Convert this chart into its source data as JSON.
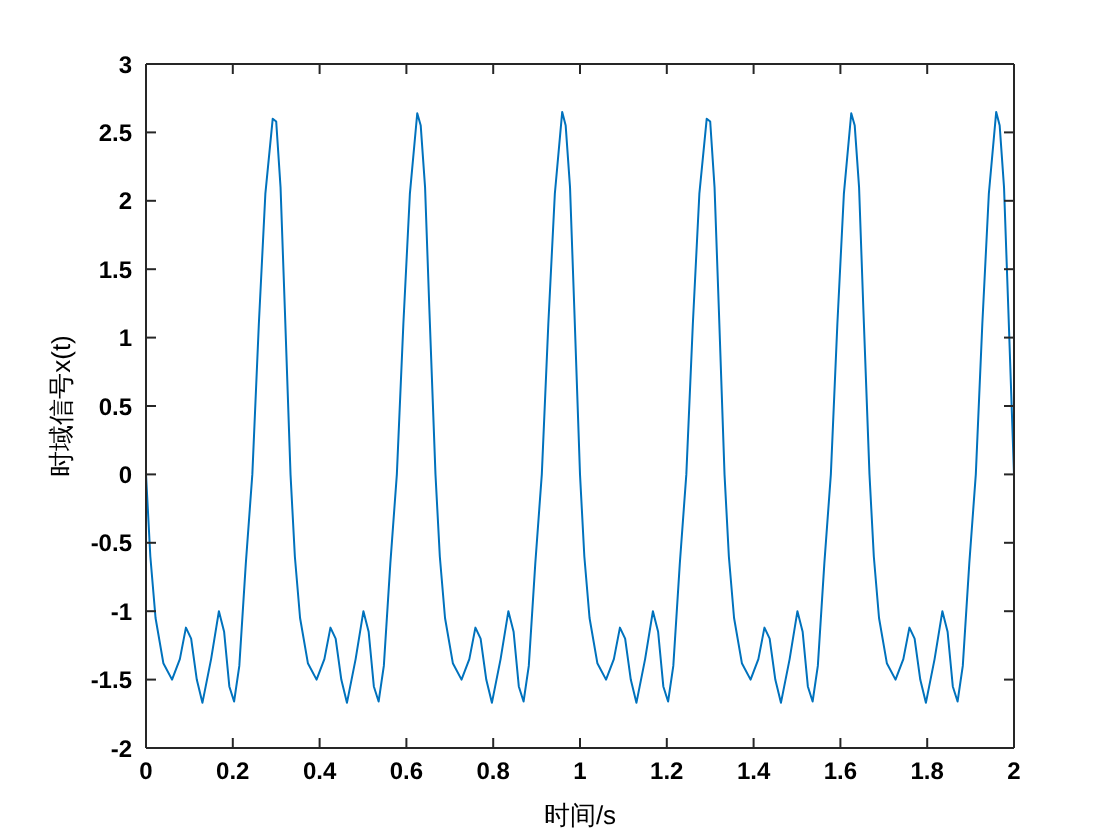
{
  "chart_data": {
    "type": "line",
    "xlabel": "时间/s",
    "ylabel": "时域信号x(t)",
    "x": [
      0,
      0.01,
      0.022,
      0.04,
      0.06,
      0.078,
      0.092,
      0.104,
      0.117,
      0.13,
      0.15,
      0.168,
      0.18,
      0.192,
      0.203,
      0.215,
      0.23,
      0.245,
      0.26,
      0.275,
      0.292,
      0.3,
      0.31,
      0.32,
      0.333,
      0.343,
      0.355,
      0.373,
      0.393,
      0.411,
      0.425,
      0.437,
      0.45,
      0.463,
      0.483,
      0.501,
      0.513,
      0.525,
      0.536,
      0.548,
      0.563,
      0.578,
      0.593,
      0.608,
      0.625,
      0.633,
      0.643,
      0.653,
      0.667,
      0.677,
      0.689,
      0.707,
      0.727,
      0.745,
      0.759,
      0.771,
      0.784,
      0.797,
      0.817,
      0.835,
      0.847,
      0.859,
      0.87,
      0.882,
      0.897,
      0.912,
      0.927,
      0.942,
      0.959,
      0.967,
      0.977,
      0.987,
      1.0,
      1.01,
      1.022,
      1.04,
      1.06,
      1.078,
      1.092,
      1.104,
      1.117,
      1.13,
      1.15,
      1.168,
      1.18,
      1.192,
      1.203,
      1.215,
      1.23,
      1.245,
      1.26,
      1.275,
      1.292,
      1.3,
      1.31,
      1.32,
      1.333,
      1.343,
      1.355,
      1.373,
      1.393,
      1.411,
      1.425,
      1.437,
      1.45,
      1.463,
      1.483,
      1.501,
      1.513,
      1.525,
      1.536,
      1.548,
      1.563,
      1.578,
      1.593,
      1.608,
      1.625,
      1.633,
      1.643,
      1.653,
      1.667,
      1.677,
      1.689,
      1.707,
      1.727,
      1.745,
      1.759,
      1.771,
      1.784,
      1.797,
      1.817,
      1.835,
      1.847,
      1.859,
      1.87,
      1.882,
      1.897,
      1.912,
      1.927,
      1.942,
      1.959,
      1.967,
      1.977,
      1.987,
      2.0
    ],
    "series": [
      {
        "color": "#0072bd",
        "values": [
          0,
          -0.6,
          -1.05,
          -1.38,
          -1.5,
          -1.35,
          -1.12,
          -1.2,
          -1.5,
          -1.67,
          -1.35,
          -1.0,
          -1.15,
          -1.55,
          -1.66,
          -1.4,
          -0.65,
          0,
          1.1,
          2.05,
          2.6,
          2.58,
          2.1,
          1.2,
          0,
          -0.6,
          -1.05,
          -1.38,
          -1.5,
          -1.35,
          -1.12,
          -1.2,
          -1.5,
          -1.67,
          -1.35,
          -1.0,
          -1.15,
          -1.55,
          -1.66,
          -1.4,
          -0.65,
          0,
          1.1,
          2.05,
          2.64,
          2.55,
          2.1,
          1.2,
          0,
          -0.6,
          -1.05,
          -1.38,
          -1.5,
          -1.35,
          -1.12,
          -1.2,
          -1.5,
          -1.67,
          -1.35,
          -1.0,
          -1.15,
          -1.55,
          -1.66,
          -1.4,
          -0.65,
          0,
          1.1,
          2.05,
          2.65,
          2.55,
          2.1,
          1.2,
          0,
          -0.6,
          -1.05,
          -1.38,
          -1.5,
          -1.35,
          -1.12,
          -1.2,
          -1.5,
          -1.67,
          -1.35,
          -1.0,
          -1.15,
          -1.55,
          -1.66,
          -1.4,
          -0.65,
          0,
          1.1,
          2.05,
          2.6,
          2.58,
          2.1,
          1.2,
          0,
          -0.6,
          -1.05,
          -1.38,
          -1.5,
          -1.35,
          -1.12,
          -1.2,
          -1.5,
          -1.67,
          -1.35,
          -1.0,
          -1.15,
          -1.55,
          -1.66,
          -1.4,
          -0.65,
          0,
          1.1,
          2.05,
          2.64,
          2.55,
          2.1,
          1.2,
          0,
          -0.6,
          -1.05,
          -1.38,
          -1.5,
          -1.35,
          -1.12,
          -1.2,
          -1.5,
          -1.67,
          -1.35,
          -1.0,
          -1.15,
          -1.55,
          -1.66,
          -1.4,
          -0.65,
          0,
          1.1,
          2.05,
          2.65,
          2.55,
          2.1,
          1.2,
          0
        ]
      }
    ],
    "xlim": [
      0,
      2
    ],
    "xticks": [
      0,
      0.2,
      0.4,
      0.6,
      0.8,
      1,
      1.2,
      1.4,
      1.6,
      1.8,
      2
    ],
    "ylim": [
      -2,
      3
    ],
    "yticks": [
      -2,
      -1.5,
      -1,
      -0.5,
      0,
      0.5,
      1,
      1.5,
      2,
      2.5,
      3
    ]
  }
}
